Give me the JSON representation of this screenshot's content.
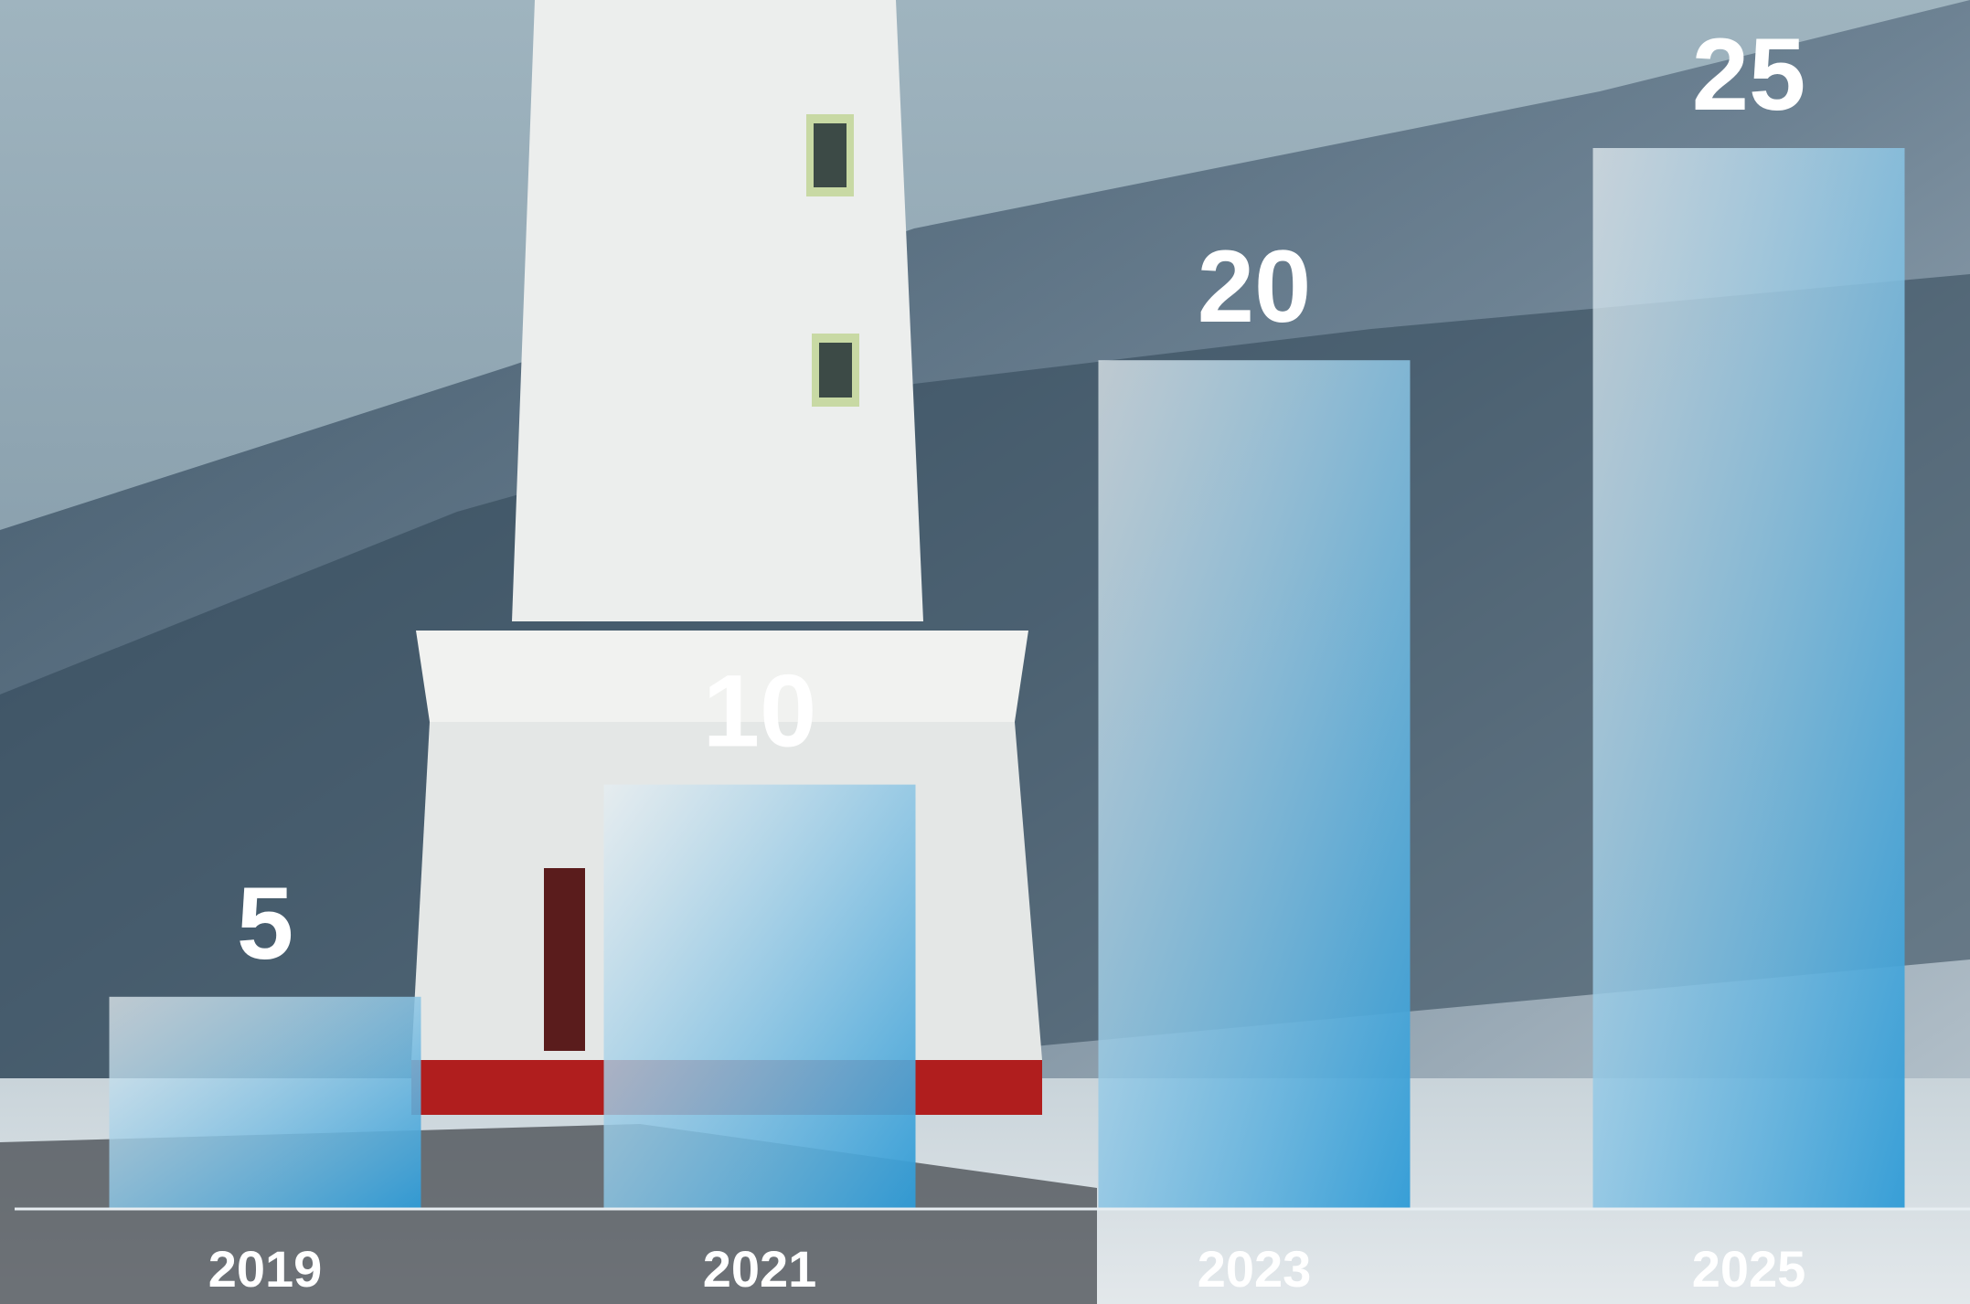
{
  "chart_data": {
    "type": "bar",
    "categories": [
      "2019",
      "2021",
      "2023",
      "2025"
    ],
    "values": [
      5,
      10,
      20,
      25
    ],
    "color": "#2f9bd6"
  }
}
